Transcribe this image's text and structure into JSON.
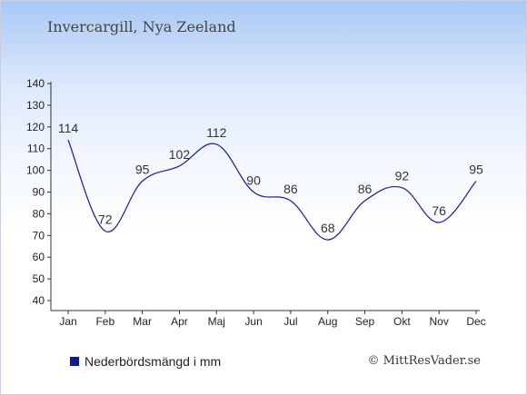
{
  "chart_data": {
    "type": "line",
    "title": "Invercargill, Nya Zeeland",
    "categories": [
      "Jan",
      "Feb",
      "Mar",
      "Apr",
      "Maj",
      "Jun",
      "Jul",
      "Aug",
      "Sep",
      "Okt",
      "Nov",
      "Dec"
    ],
    "series": [
      {
        "name": "Nederbördsmängd i mm",
        "values": [
          114,
          72,
          95,
          102,
          112,
          90,
          86,
          68,
          86,
          92,
          76,
          95
        ],
        "color": "#1a1a9e"
      }
    ],
    "data_labels": [
      "114",
      "72",
      "95",
      "102",
      "112",
      "90",
      "86",
      "68",
      "86",
      "92",
      "76",
      "95"
    ],
    "y_ticks": [
      40,
      50,
      60,
      70,
      80,
      90,
      100,
      110,
      120,
      130,
      140
    ],
    "ylim": [
      40,
      140
    ],
    "grid": false,
    "legend_position": "bottom-left",
    "background": "gradient-blue-to-white"
  },
  "footer": {
    "copyright": "© MittResVader.se"
  },
  "colors": {
    "line": "#1a1a9e",
    "legend_swatch": "#0a1a9a",
    "axis": "#333333"
  }
}
